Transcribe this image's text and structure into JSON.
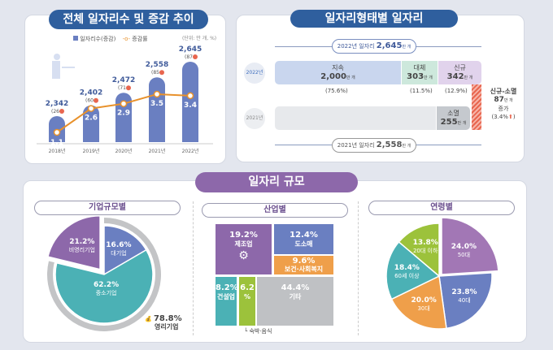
{
  "panel1": {
    "title": "전체 일자리수 및 증감 추이",
    "legend_bar": "일자리수(증감)",
    "legend_line": "증감률",
    "unit": "(단위: 만 개, %)"
  },
  "panel2": {
    "title": "일자리형태별 일자리",
    "top_bracket": "2022년 일자리",
    "top_total": "2,645",
    "bottom_bracket": "2021년 일자리",
    "bottom_total": "2,558",
    "unit_small": "만 개",
    "row_2022": "2022년",
    "row_2021": "2021년",
    "segments_2022": [
      {
        "name": "지속",
        "value": "2,000",
        "share": "(75.6%)"
      },
      {
        "name": "대체",
        "value": "303",
        "share": "(11.5%)"
      },
      {
        "name": "신규",
        "value": "342",
        "share": "(12.9%)"
      }
    ],
    "segment_2021": {
      "name": "소멸",
      "value": "255"
    },
    "net": {
      "label": "신규-소멸",
      "value": "87",
      "word": "증가",
      "rate": "(3.4%"
    }
  },
  "panel3": {
    "title": "일자리 규모",
    "firm_title": "기업규모별",
    "industry_title": "산업별",
    "age_title": "연령별",
    "profit_total": {
      "value": "78.8%",
      "label": "영리기업"
    },
    "industry_note": "숙박·음식"
  },
  "colors": {
    "navy": "#2f5f9e",
    "bar": "#6a7fc1",
    "line": "#e8912b",
    "purple": "#8d68aa",
    "teal": "#4bb1b5",
    "orange": "#ef9f4a",
    "green": "#9cc23b",
    "gray": "#bfc1c4",
    "lightblue": "#c9d6ee",
    "mint": "#cde8dc",
    "lavender": "#e1d3ec"
  },
  "chart_data": [
    {
      "type": "bar+line",
      "categories": [
        "2018년",
        "2019년",
        "2020년",
        "2021년",
        "2022년"
      ],
      "series": [
        {
          "name": "일자리수(증감)",
          "values": [
            2342,
            2402,
            2472,
            2558,
            2645
          ],
          "labels": [
            "2,342",
            "2,402",
            "2,472",
            "2,558",
            "2,645"
          ],
          "changes": [
            "(26",
            "(60",
            "(71",
            "(85",
            "(87"
          ]
        },
        {
          "name": "증감률",
          "values": [
            1.1,
            2.6,
            2.9,
            3.5,
            3.4
          ],
          "labels": [
            "1.1",
            "2.6",
            "2.9",
            "3.5",
            "3.4"
          ]
        }
      ]
    },
    {
      "type": "pie",
      "title": "기업규모별",
      "slices": [
        {
          "label": "대기업",
          "value": 16.6,
          "text": "16.6%",
          "color": "#6a7fc1"
        },
        {
          "label": "중소기업",
          "value": 62.2,
          "text": "62.2%",
          "color": "#4bb1b5"
        },
        {
          "label": "비영리기업",
          "value": 21.2,
          "text": "21.2%",
          "color": "#8d68aa"
        }
      ]
    },
    {
      "type": "treemap",
      "title": "산업별",
      "cells": [
        {
          "label": "제조업",
          "value": 19.2,
          "text": "19.2%",
          "color": "#8d68aa"
        },
        {
          "label": "도소매",
          "value": 12.4,
          "text": "12.4%",
          "color": "#6a7fc1"
        },
        {
          "label": "보건·사회복지",
          "value": 9.6,
          "text": "9.6%",
          "color": "#ef9f4a"
        },
        {
          "label": "건설업",
          "value": 8.2,
          "text": "8.2%",
          "color": "#4bb1b5"
        },
        {
          "label": "숙박·음식",
          "value": 6.2,
          "text": "6.2",
          "text2": "%",
          "color": "#9cc23b"
        },
        {
          "label": "기타",
          "value": 44.4,
          "text": "44.4%",
          "color": "#bfc1c4"
        }
      ]
    },
    {
      "type": "pie",
      "title": "연령별",
      "slices": [
        {
          "label": "50대",
          "value": 24.0,
          "text": "24.0%",
          "color": "#a277b5"
        },
        {
          "label": "40대",
          "value": 23.8,
          "text": "23.8%",
          "color": "#6a7fc1"
        },
        {
          "label": "30대",
          "value": 20.0,
          "text": "20.0%",
          "color": "#ef9f4a"
        },
        {
          "label": "60세 이상",
          "value": 18.4,
          "text": "18.4%",
          "color": "#4bb1b5"
        },
        {
          "label": "20대 이하",
          "value": 13.8,
          "text": "13.8%",
          "color": "#9cc23b"
        }
      ]
    }
  ]
}
